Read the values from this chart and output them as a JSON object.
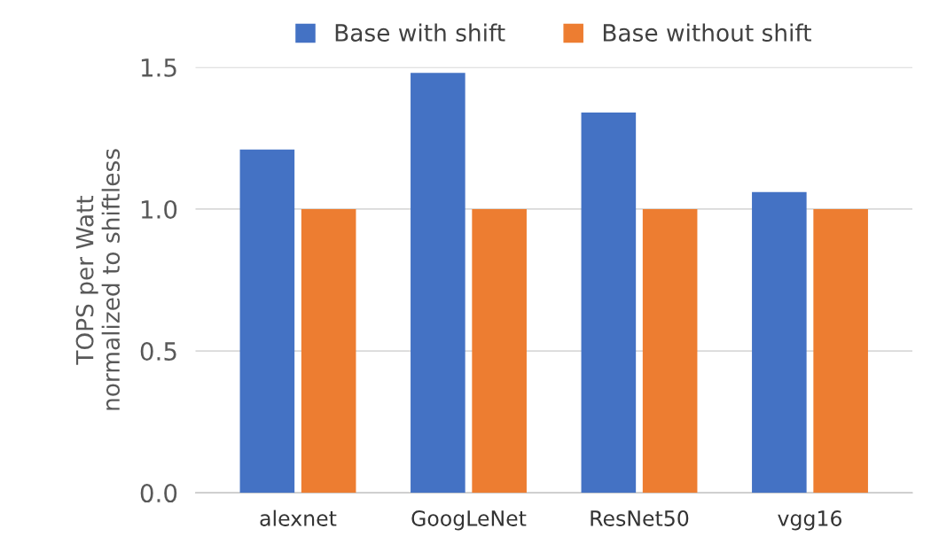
{
  "chart_data": {
    "type": "bar",
    "categories": [
      "alexnet",
      "GoogLeNet",
      "ResNet50",
      "vgg16"
    ],
    "ylabel": "TOPS per Watt\nnormalized to shiftless",
    "series": [
      {
        "name": "Base with shift",
        "color": "#4472c4",
        "values": [
          1.21,
          1.48,
          1.34,
          1.06
        ]
      },
      {
        "name": "Base without shift",
        "color": "#ed7d31",
        "values": [
          1.0,
          1.0,
          1.0,
          1.0
        ]
      }
    ],
    "ylim": [
      0,
      1.5
    ],
    "yticks": [
      {
        "value": 0,
        "label": "0.0"
      },
      {
        "value": 0.5,
        "label": "0.5"
      },
      {
        "value": 1.0,
        "label": "1.0"
      },
      {
        "value": 1.5,
        "label": "1.5"
      }
    ],
    "grid": "y",
    "legend": "top"
  }
}
